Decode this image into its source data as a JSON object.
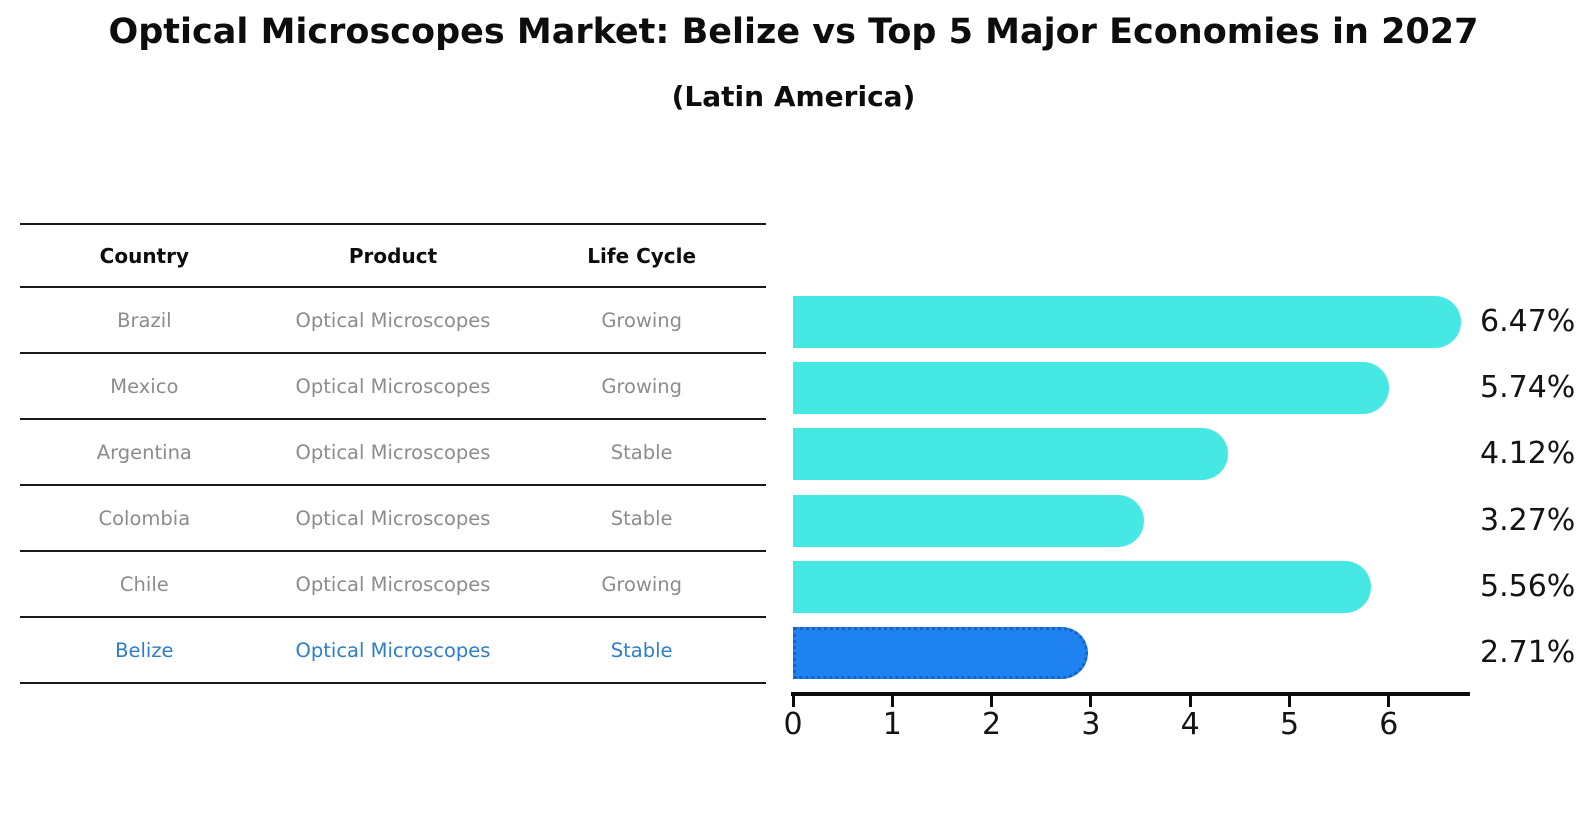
{
  "title": "Optical Microscopes Market: Belize vs Top 5 Major Economies in 2027",
  "subtitle": "(Latin America)",
  "table": {
    "headers": [
      "Country",
      "Product",
      "Life Cycle"
    ],
    "rows": [
      {
        "country": "Brazil",
        "product": "Optical Microscopes",
        "life_cycle": "Growing",
        "highlight": false
      },
      {
        "country": "Mexico",
        "product": "Optical Microscopes",
        "life_cycle": "Growing",
        "highlight": false
      },
      {
        "country": "Argentina",
        "product": "Optical Microscopes",
        "life_cycle": "Stable",
        "highlight": false
      },
      {
        "country": "Colombia",
        "product": "Optical Microscopes",
        "life_cycle": "Stable",
        "highlight": false
      },
      {
        "country": "Chile",
        "product": "Optical Microscopes",
        "life_cycle": "Growing",
        "highlight": false
      },
      {
        "country": "Belize",
        "product": "Optical Microscopes",
        "life_cycle": "Stable",
        "highlight": true
      }
    ]
  },
  "chart_data": {
    "type": "bar",
    "orientation": "horizontal",
    "categories": [
      "Brazil",
      "Mexico",
      "Argentina",
      "Colombia",
      "Chile",
      "Belize"
    ],
    "values": [
      6.47,
      5.74,
      4.12,
      3.27,
      5.56,
      2.71
    ],
    "value_labels": [
      "6.47%",
      "5.74%",
      "4.12%",
      "3.27%",
      "5.56%",
      "2.71%"
    ],
    "highlight_index": 5,
    "xticks": [
      0,
      1,
      2,
      3,
      4,
      5,
      6
    ],
    "xlim": [
      0,
      6.8
    ],
    "grid": false,
    "legend": null,
    "bar_color": "#46e8e4",
    "highlight_bar_color": "#1e82f0",
    "highlight_text_color": "#2e7dc9",
    "axis_color": "#0d0d0d"
  }
}
